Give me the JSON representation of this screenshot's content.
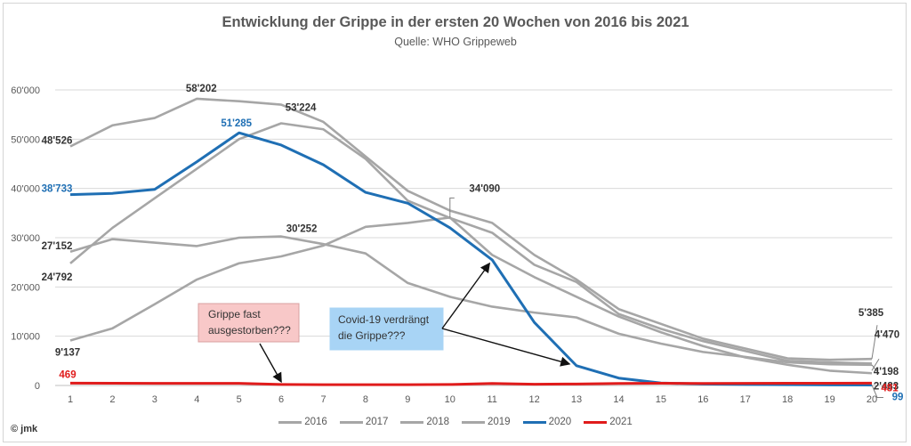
{
  "chart_data": {
    "type": "line",
    "title": "Entwicklung der Grippe in der ersten 20 Wochen von 2016 bis 2021",
    "subtitle": "Quelle: WHO Grippeweb",
    "xlabel": "",
    "ylabel": "",
    "x": [
      1,
      2,
      3,
      4,
      5,
      6,
      7,
      8,
      9,
      10,
      11,
      12,
      13,
      14,
      15,
      16,
      17,
      18,
      19,
      20
    ],
    "ylim": [
      0,
      60000
    ],
    "yticks": [
      0,
      10000,
      20000,
      30000,
      40000,
      50000,
      60000
    ],
    "ytick_labels": [
      "0",
      "10'000",
      "20'000",
      "30'000",
      "40'000",
      "50'000",
      "60'000"
    ],
    "grid": "horizontal",
    "legend_position": "bottom",
    "series": [
      {
        "name": "2016",
        "color": "#a6a6a6",
        "values": [
          48526,
          52800,
          54300,
          58202,
          57700,
          57000,
          53500,
          46500,
          39500,
          35500,
          33000,
          26500,
          21500,
          15500,
          12500,
          9500,
          7500,
          5500,
          5200,
          5385
        ]
      },
      {
        "name": "2017",
        "color": "#a6a6a6",
        "values": [
          27152,
          29700,
          29000,
          28300,
          30000,
          30252,
          28700,
          26800,
          20800,
          18000,
          16000,
          14800,
          13800,
          10500,
          8500,
          6800,
          5800,
          4700,
          4300,
          4198
        ]
      },
      {
        "name": "2018",
        "color": "#a6a6a6",
        "values": [
          24792,
          32000,
          38000,
          44000,
          50000,
          53224,
          52000,
          46000,
          37500,
          34000,
          31000,
          24500,
          21000,
          14500,
          11500,
          9000,
          7000,
          5000,
          4700,
          4470
        ]
      },
      {
        "name": "2019",
        "color": "#a6a6a6",
        "values": [
          9137,
          11600,
          16500,
          21500,
          24800,
          26200,
          28400,
          32200,
          33000,
          34090,
          26500,
          22000,
          18000,
          14000,
          10800,
          8000,
          5700,
          4200,
          3000,
          2483
        ]
      },
      {
        "name": "2020",
        "color": "#1f6fb4",
        "values": [
          38733,
          39000,
          39800,
          45400,
          51285,
          48800,
          44800,
          39200,
          37000,
          32000,
          25500,
          12800,
          4000,
          1500,
          500,
          300,
          200,
          150,
          120,
          99
        ]
      },
      {
        "name": "2021",
        "color": "#e01b1b",
        "values": [
          469,
          450,
          440,
          430,
          420,
          200,
          150,
          150,
          150,
          200,
          400,
          250,
          300,
          400,
          450,
          400,
          420,
          450,
          460,
          481
        ]
      }
    ],
    "data_labels": [
      {
        "series": "2016",
        "week": 1,
        "text": "48'526",
        "color": "#333333"
      },
      {
        "series": "2016",
        "week": 4,
        "text": "58'202",
        "color": "#333333"
      },
      {
        "series": "2020",
        "week": 1,
        "text": "38'733",
        "color": "#1f6fb4"
      },
      {
        "series": "2020",
        "week": 5,
        "text": "51'285",
        "color": "#1f6fb4"
      },
      {
        "series": "2018",
        "week": 6,
        "text": "53'224",
        "color": "#333333"
      },
      {
        "series": "2017",
        "week": 1,
        "text": "27'152",
        "color": "#333333"
      },
      {
        "series": "2018",
        "week": 1,
        "text": "24'792",
        "color": "#333333"
      },
      {
        "series": "2017",
        "week": 6,
        "text": "30'252",
        "color": "#333333"
      },
      {
        "series": "2019",
        "week": 10,
        "text": "34'090",
        "color": "#333333"
      },
      {
        "series": "2019",
        "week": 1,
        "text": "9'137",
        "color": "#333333"
      },
      {
        "series": "2021",
        "week": 1,
        "text": "469",
        "color": "#e01b1b"
      },
      {
        "series": "2016",
        "week": 20,
        "text": "5'385",
        "color": "#333333"
      },
      {
        "series": "2018",
        "week": 20,
        "text": "4'470",
        "color": "#333333"
      },
      {
        "series": "2017",
        "week": 20,
        "text": "4'198",
        "color": "#333333"
      },
      {
        "series": "2019",
        "week": 20,
        "text": "2'483",
        "color": "#333333"
      },
      {
        "series": "2021",
        "week": 20,
        "text": "481",
        "color": "#e01b1b"
      },
      {
        "series": "2020",
        "week": 20,
        "text": "99",
        "color": "#1f6fb4"
      }
    ],
    "annotations": [
      {
        "text_lines": [
          "Grippe fast",
          "ausgestorben???"
        ],
        "fill": "#f8c8c8",
        "border": "#d9a0a0",
        "arrow_targets": [
          {
            "week": 6,
            "value": 200
          }
        ]
      },
      {
        "text_lines": [
          "Covid-19 verdrängt",
          "die Grippe???"
        ],
        "fill": "#a8d4f5",
        "border": "#a8d4f5",
        "arrow_targets": [
          {
            "week": 11,
            "value": 25500
          },
          {
            "week": 13,
            "value": 4000
          }
        ]
      }
    ]
  },
  "footer": {
    "copyright": "© jmk"
  }
}
